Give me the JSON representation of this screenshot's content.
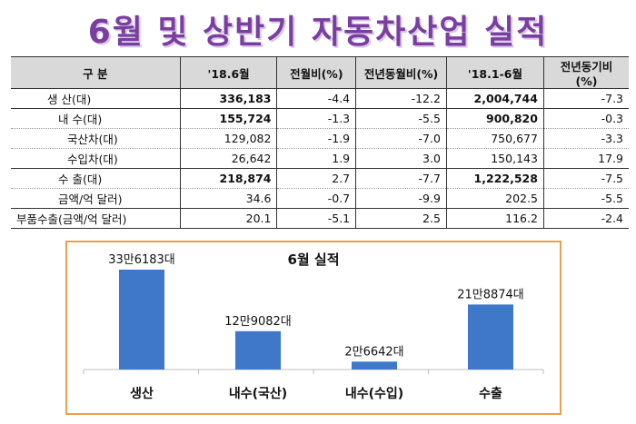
{
  "title": "6월 및 상반기 자동차산업 실적",
  "table": {
    "headers": [
      "구 분",
      "'18.6월",
      "전월비(%)",
      "전년동월비(%)",
      "'18.1-6월",
      "전년동기비(%)"
    ],
    "rows": [
      {
        "label": "생 산(대)",
        "values": [
          "336,183",
          "-4.4",
          "-12.2",
          "2,004,744",
          "-7.3"
        ]
      },
      {
        "label": "내 수(대)",
        "values": [
          "155,724",
          "-1.3",
          "-5.5",
          "900,820",
          "-0.3"
        ]
      },
      {
        "label": "국산차(대)",
        "values": [
          "129,082",
          "-1.9",
          "-7.0",
          "750,677",
          "-3.3"
        ]
      },
      {
        "label": "수입차(대)",
        "values": [
          "26,642",
          "1.9",
          "3.0",
          "150,143",
          "17.9"
        ]
      },
      {
        "label": "수 출(대)",
        "values": [
          "218,874",
          "2.7",
          "-7.7",
          "1,222,528",
          "-7.5"
        ]
      },
      {
        "label": "금액/억 달러)",
        "values": [
          "34.6",
          "-0.7",
          "-9.9",
          "202.5",
          "-5.5"
        ]
      },
      {
        "label": "부품수출(금액/억 달러)",
        "values": [
          "20.1",
          "-5.1",
          "2.5",
          "116.2",
          "-2.4"
        ]
      }
    ]
  },
  "chart_data": {
    "type": "bar",
    "title": "6월 실적",
    "categories": [
      "생산",
      "내수(국산)",
      "내수(수입)",
      "수출"
    ],
    "values": [
      336183,
      129082,
      26642,
      218874
    ],
    "data_labels": [
      "33만6183대",
      "12만9082대",
      "2만6642대",
      "21만8874대"
    ],
    "bar_color": "#3f78c8",
    "border_color": "#e8a04f",
    "grid": false,
    "legend": "none"
  }
}
